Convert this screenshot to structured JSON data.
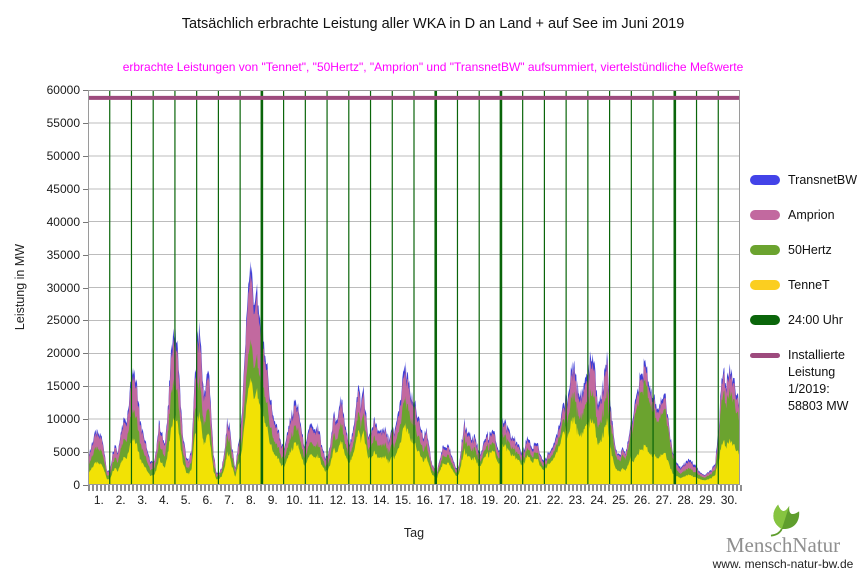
{
  "title": "Tatsächlich erbrachte Leistung aller WKA in D an Land + auf See im Juni 2019",
  "subtitle": "erbrachte Leistungen von \"Tennet\", \"50Hertz\", \"Amprion\" und \"TransnetBW\" aufsummiert, viertelstündliche Meßwerte",
  "subtitle_color": "#ff00ff",
  "axes": {
    "y_label": "Leistung in MW",
    "x_label": "Tag",
    "y_ticks": [
      0,
      5000,
      10000,
      15000,
      20000,
      25000,
      30000,
      35000,
      40000,
      45000,
      50000,
      55000,
      60000
    ],
    "x_ticks": [
      "1.",
      "2.",
      "3.",
      "4.",
      "5.",
      "6.",
      "7.",
      "8.",
      "9.",
      "10.",
      "11.",
      "12.",
      "13.",
      "14.",
      "15.",
      "16.",
      "17.",
      "18.",
      "19.",
      "20.",
      "21.",
      "22.",
      "23.",
      "24.",
      "25.",
      "26.",
      "27.",
      "28.",
      "29.",
      "30."
    ]
  },
  "legend": {
    "items": [
      {
        "label": "TransnetBW",
        "color": "#4343e8",
        "swatch": "bar"
      },
      {
        "label": "Amprion",
        "color": "#c2699f",
        "swatch": "bar"
      },
      {
        "label": "50Hertz",
        "color": "#6ba32f",
        "swatch": "bar"
      },
      {
        "label": "TenneT",
        "color": "#fbce20",
        "swatch": "bar"
      },
      {
        "label": "24:00 Uhr",
        "color": "#0a650a",
        "swatch": "bar"
      },
      {
        "label": "Installierte Leistung 1/2019: 58803 MW",
        "lines": [
          "Installierte",
          "Leistung",
          "1/2019:",
          "58803 MW"
        ],
        "color": "#9d4a7d",
        "swatch": "line"
      }
    ]
  },
  "logo": {
    "brand": "MenschNatur",
    "url": "www. mensch-natur-bw.de",
    "leaf_color": "#5f9e2d",
    "leaf_color_light": "#86c440"
  },
  "chart_data": {
    "type": "area",
    "stacked": true,
    "title": "Tatsächlich erbrachte Leistung aller WKA in D an Land + auf See im Juni 2019",
    "xlabel": "Tag",
    "ylabel": "Leistung in MW",
    "ylim": [
      0,
      60000
    ],
    "y_gridline_step": 5000,
    "days": 30,
    "samples_per_day": 8,
    "value_scale_mw": 100,
    "series": [
      {
        "name": "TenneT",
        "color": "#f2e205",
        "values": [
          20,
          23,
          29,
          34,
          31,
          32,
          22,
          9,
          8,
          19,
          26,
          21,
          34,
          42,
          40,
          55,
          74,
          68,
          62,
          42,
          34,
          28,
          19,
          14,
          14,
          22,
          41,
          33,
          27,
          40,
          67,
          95,
          109,
          90,
          54,
          32,
          19,
          16,
          27,
          68,
          99,
          109,
          72,
          63,
          82,
          54,
          22,
          9,
          9,
          13,
          26,
          47,
          42,
          25,
          12,
          30,
          43,
          77,
          115,
          149,
          160,
          134,
          141,
          120,
          115,
          96,
          77,
          62,
          50,
          43,
          40,
          29,
          29,
          38,
          48,
          55,
          64,
          58,
          45,
          33,
          30,
          44,
          46,
          40,
          44,
          38,
          28,
          21,
          23,
          33,
          53,
          48,
          58,
          65,
          50,
          38,
          36,
          44,
          61,
          85,
          66,
          81,
          55,
          39,
          40,
          52,
          45,
          38,
          45,
          43,
          35,
          38,
          43,
          45,
          60,
          75,
          90,
          84,
          70,
          63,
          60,
          50,
          43,
          36,
          43,
          30,
          18,
          11,
          11,
          22,
          33,
          30,
          34,
          28,
          19,
          14,
          17,
          36,
          52,
          44,
          41,
          39,
          41,
          30,
          28,
          40,
          50,
          43,
          53,
          47,
          37,
          31,
          61,
          57,
          53,
          50,
          46,
          40,
          34,
          30,
          34,
          45,
          40,
          34,
          42,
          37,
          28,
          22,
          27,
          33,
          36,
          42,
          52,
          62,
          76,
          84,
          72,
          91,
          102,
          88,
          73,
          77,
          85,
          96,
          93,
          97,
          80,
          60,
          68,
          80,
          99,
          75,
          45,
          29,
          23,
          21,
          25,
          23,
          29,
          41,
          35,
          43,
          50,
          54,
          60,
          56,
          48,
          42,
          45,
          40,
          46,
          50,
          42,
          32,
          21,
          14,
          13,
          11,
          12,
          14,
          16,
          15,
          13,
          11,
          10,
          8,
          7,
          8,
          10,
          12,
          16,
          36,
          53,
          68,
          57,
          63,
          66,
          59,
          49,
          48
        ]
      },
      {
        "name": "50Hertz",
        "color": "#6ba32f",
        "values": [
          13,
          15,
          19,
          22,
          20,
          21,
          14,
          6,
          5,
          12,
          16,
          14,
          22,
          27,
          26,
          35,
          46,
          43,
          39,
          26,
          21,
          18,
          12,
          9,
          9,
          14,
          25,
          20,
          17,
          25,
          42,
          58,
          53,
          44,
          26,
          15,
          9,
          8,
          13,
          33,
          48,
          53,
          35,
          31,
          40,
          26,
          11,
          4,
          5,
          7,
          13,
          24,
          21,
          13,
          6,
          15,
          15,
          27,
          41,
          53,
          57,
          48,
          50,
          42,
          48,
          40,
          32,
          26,
          21,
          18,
          17,
          12,
          12,
          15,
          19,
          22,
          25,
          23,
          18,
          13,
          12,
          18,
          18,
          16,
          18,
          15,
          11,
          8,
          9,
          13,
          21,
          19,
          23,
          26,
          20,
          15,
          12,
          14,
          20,
          28,
          22,
          26,
          18,
          13,
          18,
          23,
          20,
          17,
          20,
          19,
          15,
          17,
          19,
          20,
          26,
          33,
          39,
          37,
          31,
          28,
          26,
          22,
          19,
          16,
          19,
          13,
          8,
          5,
          4,
          8,
          12,
          11,
          12,
          10,
          7,
          5,
          6,
          13,
          19,
          16,
          15,
          14,
          15,
          11,
          7,
          10,
          12,
          11,
          13,
          11,
          9,
          8,
          15,
          14,
          13,
          12,
          11,
          10,
          8,
          7,
          8,
          11,
          10,
          8,
          10,
          9,
          7,
          5,
          6,
          8,
          8,
          10,
          12,
          14,
          18,
          19,
          26,
          33,
          37,
          32,
          26,
          28,
          31,
          35,
          41,
          42,
          35,
          26,
          30,
          35,
          44,
          33,
          35,
          23,
          18,
          16,
          20,
          18,
          23,
          32,
          57,
          70,
          81,
          88,
          97,
          91,
          78,
          68,
          61,
          55,
          62,
          68,
          58,
          43,
          29,
          19,
          8,
          7,
          8,
          9,
          10,
          10,
          8,
          7,
          6,
          5,
          4,
          5,
          6,
          7,
          9,
          20,
          59,
          75,
          63,
          69,
          73,
          65,
          55,
          53
        ]
      },
      {
        "name": "Amprion",
        "color": "#c2699f",
        "values": [
          12,
          14,
          18,
          20,
          19,
          19,
          13,
          6,
          5,
          11,
          15,
          13,
          20,
          25,
          24,
          32,
          54,
          49,
          45,
          30,
          25,
          20,
          14,
          10,
          9,
          14,
          25,
          20,
          17,
          25,
          42,
          58,
          66,
          54,
          32,
          19,
          12,
          9,
          16,
          40,
          59,
          66,
          43,
          38,
          49,
          32,
          14,
          5,
          3,
          5,
          10,
          18,
          16,
          9,
          5,
          11,
          27,
          48,
          72,
          93,
          100,
          84,
          88,
          75,
          65,
          54,
          43,
          35,
          28,
          24,
          22,
          16,
          14,
          18,
          23,
          26,
          30,
          28,
          22,
          16,
          14,
          21,
          22,
          19,
          21,
          18,
          13,
          10,
          11,
          16,
          25,
          23,
          28,
          31,
          24,
          18,
          14,
          17,
          23,
          33,
          25,
          31,
          21,
          15,
          18,
          23,
          20,
          17,
          20,
          19,
          15,
          17,
          19,
          20,
          26,
          33,
          39,
          37,
          31,
          28,
          26,
          22,
          19,
          16,
          19,
          13,
          8,
          5,
          4,
          8,
          11,
          10,
          12,
          9,
          7,
          5,
          6,
          12,
          18,
          15,
          14,
          13,
          14,
          10,
          8,
          11,
          14,
          12,
          14,
          13,
          10,
          9,
          17,
          16,
          15,
          14,
          13,
          11,
          9,
          8,
          9,
          12,
          11,
          9,
          11,
          10,
          8,
          6,
          6,
          7,
          8,
          9,
          11,
          13,
          16,
          18,
          25,
          31,
          35,
          30,
          25,
          27,
          29,
          33,
          41,
          42,
          35,
          26,
          30,
          35,
          44,
          33,
          14,
          9,
          7,
          7,
          8,
          7,
          9,
          13,
          12,
          15,
          17,
          19,
          21,
          19,
          17,
          14,
          15,
          14,
          16,
          17,
          14,
          11,
          7,
          5,
          8,
          7,
          8,
          9,
          10,
          10,
          8,
          7,
          4,
          4,
          3,
          4,
          4,
          5,
          7,
          16,
          21,
          27,
          23,
          25,
          26,
          23,
          20,
          19
        ]
      },
      {
        "name": "TransnetBW",
        "color": "#3f3fd6",
        "values": [
          3,
          3,
          4,
          5,
          4,
          4,
          3,
          1,
          2,
          3,
          4,
          2,
          4,
          7,
          5,
          8,
          11,
          10,
          9,
          6,
          5,
          4,
          3,
          3,
          1,
          2,
          6,
          5,
          3,
          5,
          9,
          14,
          15,
          12,
          8,
          4,
          3,
          2,
          4,
          9,
          14,
          15,
          10,
          8,
          11,
          8,
          3,
          2,
          1,
          1,
          3,
          5,
          6,
          3,
          2,
          4,
          5,
          8,
          12,
          15,
          17,
          14,
          14,
          13,
          12,
          10,
          8,
          7,
          6,
          5,
          4,
          3,
          3,
          4,
          5,
          7,
          8,
          6,
          5,
          3,
          4,
          5,
          6,
          5,
          5,
          4,
          3,
          3,
          2,
          3,
          6,
          5,
          6,
          7,
          6,
          4,
          3,
          5,
          6,
          9,
          7,
          9,
          6,
          3,
          4,
          5,
          5,
          3,
          5,
          4,
          5,
          3,
          4,
          5,
          8,
          9,
          11,
          10,
          8,
          6,
          8,
          6,
          4,
          4,
          4,
          4,
          1,
          1,
          1,
          2,
          4,
          4,
          3,
          3,
          2,
          2,
          1,
          4,
          5,
          5,
          5,
          4,
          5,
          4,
          2,
          4,
          5,
          4,
          5,
          4,
          4,
          2,
          6,
          5,
          5,
          4,
          4,
          4,
          4,
          3,
          4,
          5,
          4,
          4,
          4,
          4,
          2,
          3,
          3,
          2,
          3,
          4,
          5,
          6,
          7,
          8,
          7,
          10,
          11,
          10,
          8,
          8,
          10,
          11,
          11,
          12,
          10,
          8,
          7,
          10,
          11,
          9,
          6,
          4,
          2,
          3,
          3,
          2,
          4,
          4,
          6,
          7,
          7,
          9,
          9,
          9,
          7,
          6,
          7,
          5,
          6,
          7,
          6,
          4,
          3,
          2,
          3,
          3,
          2,
          3,
          4,
          3,
          4,
          3,
          2,
          1,
          1,
          1,
          2,
          2,
          3,
          8,
          7,
          8,
          7,
          8,
          8,
          8,
          6,
          5
        ]
      }
    ],
    "midnight_lines": {
      "label": "24:00 Uhr",
      "color": "#0a650a",
      "at_every_day_boundary": true,
      "thick_after_days": [
        8,
        16,
        19,
        27
      ]
    },
    "installed_capacity": {
      "label": "Installierte Leistung 1/2019",
      "value_mw": 58803,
      "color": "#9d4a7d"
    }
  }
}
